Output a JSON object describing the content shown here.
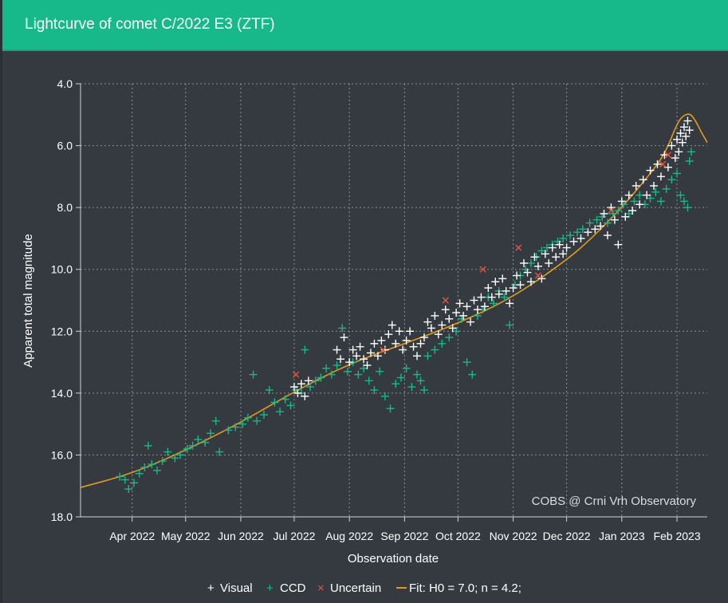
{
  "header": {
    "title": "Lightcurve of comet C/2022 E3 (ZTF)"
  },
  "credit": "COBS @ Crni Vrh Observatory",
  "colors": {
    "header_bg": "#17b98a",
    "background": "#343a40",
    "visual": "#ffffff",
    "ccd": "#17b98a",
    "uncertain": "#e8553c",
    "fit": "#e39b1c",
    "grid": "#8a8f94"
  },
  "chart_data": {
    "type": "scatter",
    "title": "Lightcurve of comet C/2022 E3 (ZTF)",
    "xlabel": "Observation date",
    "ylabel": "Apparent total magnitude",
    "y_inverted": true,
    "ylim": [
      4.0,
      18.0
    ],
    "xlim": [
      "2022-03-03",
      "2023-02-18"
    ],
    "grid": true,
    "legend_position": "bottom",
    "y_ticks": [
      "4.0",
      "6.0",
      "8.0",
      "10.0",
      "12.0",
      "14.0",
      "16.0",
      "18.0"
    ],
    "x_ticks": [
      {
        "date": "2022-04-01",
        "label": "Apr 2022"
      },
      {
        "date": "2022-05-01",
        "label": "May 2022"
      },
      {
        "date": "2022-06-01",
        "label": "Jun 2022"
      },
      {
        "date": "2022-07-01",
        "label": "Jul 2022"
      },
      {
        "date": "2022-08-01",
        "label": "Aug 2022"
      },
      {
        "date": "2022-09-01",
        "label": "Sep 2022"
      },
      {
        "date": "2022-10-01",
        "label": "Oct 2022"
      },
      {
        "date": "2022-11-01",
        "label": "Nov 2022"
      },
      {
        "date": "2022-12-01",
        "label": "Dec 2022"
      },
      {
        "date": "2023-01-01",
        "label": "Jan 2023"
      },
      {
        "date": "2023-02-01",
        "label": "Feb 2023"
      }
    ],
    "legend": [
      {
        "symbol": "+",
        "label": "Visual",
        "color": "#ffffff"
      },
      {
        "symbol": "+",
        "label": "CCD",
        "color": "#17b98a"
      },
      {
        "symbol": "×",
        "label": "Uncertain",
        "color": "#e8553c"
      },
      {
        "symbol": "—",
        "label": "Fit: H0 = 7.0; n = 4.2;",
        "color": "#e39b1c"
      }
    ],
    "series": [
      {
        "name": "Visual",
        "marker": "plus",
        "color": "#ffffff",
        "points": [
          [
            "2022-07-01",
            13.8
          ],
          [
            "2022-07-03",
            14.0
          ],
          [
            "2022-07-05",
            13.7
          ],
          [
            "2022-07-07",
            14.1
          ],
          [
            "2022-07-09",
            13.6
          ],
          [
            "2022-07-25",
            12.6
          ],
          [
            "2022-07-27",
            12.9
          ],
          [
            "2022-07-29",
            12.2
          ],
          [
            "2022-08-01",
            13.0
          ],
          [
            "2022-08-03",
            12.6
          ],
          [
            "2022-08-05",
            12.8
          ],
          [
            "2022-08-07",
            12.5
          ],
          [
            "2022-08-09",
            12.9
          ],
          [
            "2022-08-11",
            13.1
          ],
          [
            "2022-08-13",
            12.7
          ],
          [
            "2022-08-15",
            12.4
          ],
          [
            "2022-08-17",
            12.8
          ],
          [
            "2022-08-19",
            12.3
          ],
          [
            "2022-08-21",
            12.6
          ],
          [
            "2022-08-23",
            12.1
          ],
          [
            "2022-08-25",
            11.8
          ],
          [
            "2022-08-27",
            12.4
          ],
          [
            "2022-08-29",
            12.0
          ],
          [
            "2022-08-31",
            12.6
          ],
          [
            "2022-09-02",
            12.3
          ],
          [
            "2022-09-04",
            12.0
          ],
          [
            "2022-09-06",
            12.5
          ],
          [
            "2022-09-08",
            12.8
          ],
          [
            "2022-09-10",
            12.4
          ],
          [
            "2022-09-12",
            12.2
          ],
          [
            "2022-09-14",
            11.7
          ],
          [
            "2022-09-16",
            11.9
          ],
          [
            "2022-09-18",
            11.5
          ],
          [
            "2022-09-20",
            12.1
          ],
          [
            "2022-09-22",
            11.8
          ],
          [
            "2022-09-24",
            11.3
          ],
          [
            "2022-09-26",
            11.6
          ],
          [
            "2022-09-28",
            11.9
          ],
          [
            "2022-09-30",
            11.4
          ],
          [
            "2022-10-02",
            11.1
          ],
          [
            "2022-10-04",
            11.5
          ],
          [
            "2022-10-06",
            11.2
          ],
          [
            "2022-10-08",
            11.7
          ],
          [
            "2022-10-10",
            11.0
          ],
          [
            "2022-10-12",
            11.3
          ],
          [
            "2022-10-14",
            10.9
          ],
          [
            "2022-10-16",
            11.2
          ],
          [
            "2022-10-18",
            10.6
          ],
          [
            "2022-10-20",
            10.9
          ],
          [
            "2022-10-22",
            10.4
          ],
          [
            "2022-10-24",
            10.8
          ],
          [
            "2022-10-26",
            10.3
          ],
          [
            "2022-10-28",
            10.7
          ],
          [
            "2022-10-30",
            11.1
          ],
          [
            "2022-11-01",
            10.6
          ],
          [
            "2022-11-03",
            10.2
          ],
          [
            "2022-11-05",
            10.5
          ],
          [
            "2022-11-07",
            9.8
          ],
          [
            "2022-11-09",
            10.1
          ],
          [
            "2022-11-11",
            10.4
          ],
          [
            "2022-11-13",
            9.6
          ],
          [
            "2022-11-15",
            9.9
          ],
          [
            "2022-11-17",
            10.3
          ],
          [
            "2022-11-19",
            9.5
          ],
          [
            "2022-11-21",
            9.8
          ],
          [
            "2022-11-23",
            9.3
          ],
          [
            "2022-11-25",
            9.6
          ],
          [
            "2022-11-27",
            9.2
          ],
          [
            "2022-11-29",
            9.5
          ],
          [
            "2022-12-01",
            9.3
          ],
          [
            "2022-12-05",
            9.1
          ],
          [
            "2022-12-09",
            9.0
          ],
          [
            "2022-12-13",
            8.8
          ],
          [
            "2022-12-17",
            8.7
          ],
          [
            "2022-12-20",
            8.6
          ],
          [
            "2022-12-22",
            8.2
          ],
          [
            "2022-12-24",
            8.9
          ],
          [
            "2022-12-26",
            8.0
          ],
          [
            "2022-12-28",
            8.4
          ],
          [
            "2022-12-30",
            9.2
          ],
          [
            "2023-01-01",
            7.8
          ],
          [
            "2023-01-03",
            8.3
          ],
          [
            "2023-01-05",
            7.6
          ],
          [
            "2023-01-07",
            8.1
          ],
          [
            "2023-01-09",
            7.3
          ],
          [
            "2023-01-11",
            7.9
          ],
          [
            "2023-01-13",
            7.1
          ],
          [
            "2023-01-15",
            7.6
          ],
          [
            "2023-01-17",
            6.8
          ],
          [
            "2023-01-19",
            7.3
          ],
          [
            "2023-01-21",
            6.6
          ],
          [
            "2023-01-23",
            7.0
          ],
          [
            "2023-01-25",
            6.3
          ],
          [
            "2023-01-27",
            6.7
          ],
          [
            "2023-01-29",
            6.0
          ],
          [
            "2023-01-31",
            6.4
          ],
          [
            "2023-02-01",
            5.8
          ],
          [
            "2023-02-02",
            6.2
          ],
          [
            "2023-02-03",
            5.6
          ],
          [
            "2023-02-04",
            5.9
          ],
          [
            "2023-02-05",
            5.4
          ],
          [
            "2023-02-06",
            5.7
          ],
          [
            "2023-02-07",
            5.2
          ],
          [
            "2023-02-08",
            5.5
          ]
        ]
      },
      {
        "name": "CCD",
        "marker": "plus",
        "color": "#17b98a",
        "points": [
          [
            "2022-03-25",
            16.7
          ],
          [
            "2022-03-28",
            16.8
          ],
          [
            "2022-03-30",
            17.1
          ],
          [
            "2022-04-02",
            16.9
          ],
          [
            "2022-04-05",
            16.6
          ],
          [
            "2022-04-08",
            16.4
          ],
          [
            "2022-04-10",
            15.7
          ],
          [
            "2022-04-12",
            16.3
          ],
          [
            "2022-04-15",
            16.5
          ],
          [
            "2022-04-18",
            16.2
          ],
          [
            "2022-04-21",
            15.9
          ],
          [
            "2022-04-25",
            16.1
          ],
          [
            "2022-04-28",
            16.0
          ],
          [
            "2022-05-02",
            15.8
          ],
          [
            "2022-05-05",
            15.7
          ],
          [
            "2022-05-08",
            15.5
          ],
          [
            "2022-05-12",
            15.6
          ],
          [
            "2022-05-15",
            15.3
          ],
          [
            "2022-05-18",
            14.9
          ],
          [
            "2022-05-20",
            15.9
          ],
          [
            "2022-05-25",
            15.2
          ],
          [
            "2022-05-29",
            15.1
          ],
          [
            "2022-06-02",
            15.0
          ],
          [
            "2022-06-05",
            14.8
          ],
          [
            "2022-06-08",
            13.4
          ],
          [
            "2022-06-10",
            14.9
          ],
          [
            "2022-06-14",
            14.7
          ],
          [
            "2022-06-17",
            13.9
          ],
          [
            "2022-06-20",
            14.3
          ],
          [
            "2022-06-23",
            14.6
          ],
          [
            "2022-06-26",
            14.2
          ],
          [
            "2022-06-29",
            14.4
          ],
          [
            "2022-07-02",
            13.9
          ],
          [
            "2022-07-05",
            14.0
          ],
          [
            "2022-07-07",
            12.6
          ],
          [
            "2022-07-10",
            13.8
          ],
          [
            "2022-07-13",
            13.6
          ],
          [
            "2022-07-16",
            13.5
          ],
          [
            "2022-07-19",
            13.2
          ],
          [
            "2022-07-22",
            13.4
          ],
          [
            "2022-07-25",
            13.1
          ],
          [
            "2022-07-28",
            11.9
          ],
          [
            "2022-07-31",
            13.3
          ],
          [
            "2022-08-03",
            13.0
          ],
          [
            "2022-08-06",
            13.4
          ],
          [
            "2022-08-09",
            13.2
          ],
          [
            "2022-08-12",
            13.6
          ],
          [
            "2022-08-15",
            13.9
          ],
          [
            "2022-08-18",
            13.3
          ],
          [
            "2022-08-21",
            14.1
          ],
          [
            "2022-08-24",
            14.5
          ],
          [
            "2022-08-27",
            13.7
          ],
          [
            "2022-08-30",
            13.5
          ],
          [
            "2022-09-02",
            13.2
          ],
          [
            "2022-09-05",
            13.8
          ],
          [
            "2022-09-08",
            13.4
          ],
          [
            "2022-09-10",
            13.6
          ],
          [
            "2022-09-12",
            13.9
          ],
          [
            "2022-09-14",
            12.8
          ],
          [
            "2022-09-18",
            12.6
          ],
          [
            "2022-09-22",
            12.4
          ],
          [
            "2022-09-26",
            12.2
          ],
          [
            "2022-09-30",
            12.0
          ],
          [
            "2022-10-03",
            11.6
          ],
          [
            "2022-10-06",
            13.0
          ],
          [
            "2022-10-09",
            13.4
          ],
          [
            "2022-10-12",
            11.5
          ],
          [
            "2022-10-15",
            11.3
          ],
          [
            "2022-10-18",
            10.9
          ],
          [
            "2022-10-21",
            11.1
          ],
          [
            "2022-10-24",
            10.7
          ],
          [
            "2022-10-27",
            10.9
          ],
          [
            "2022-10-30",
            11.8
          ],
          [
            "2022-11-02",
            10.5
          ],
          [
            "2022-11-05",
            10.2
          ],
          [
            "2022-11-08",
            10.0
          ],
          [
            "2022-11-11",
            9.8
          ],
          [
            "2022-11-14",
            9.6
          ],
          [
            "2022-11-17",
            9.4
          ],
          [
            "2022-11-20",
            9.3
          ],
          [
            "2022-11-23",
            9.2
          ],
          [
            "2022-11-26",
            9.1
          ],
          [
            "2022-11-29",
            9.0
          ],
          [
            "2022-12-03",
            8.9
          ],
          [
            "2022-12-07",
            8.8
          ],
          [
            "2022-12-10",
            8.7
          ],
          [
            "2022-12-14",
            8.5
          ],
          [
            "2022-12-18",
            8.4
          ],
          [
            "2022-12-21",
            8.3
          ],
          [
            "2022-12-24",
            8.5
          ],
          [
            "2022-12-27",
            8.2
          ],
          [
            "2022-12-30",
            8.1
          ],
          [
            "2023-01-02",
            7.9
          ],
          [
            "2023-01-05",
            8.2
          ],
          [
            "2023-01-08",
            7.8
          ],
          [
            "2023-01-11",
            7.6
          ],
          [
            "2023-01-14",
            7.9
          ],
          [
            "2023-01-17",
            7.7
          ],
          [
            "2023-01-20",
            7.5
          ],
          [
            "2023-01-23",
            7.8
          ],
          [
            "2023-01-26",
            7.4
          ],
          [
            "2023-01-29",
            7.1
          ],
          [
            "2023-02-01",
            6.9
          ],
          [
            "2023-02-03",
            7.6
          ],
          [
            "2023-02-05",
            7.8
          ],
          [
            "2023-02-07",
            8.0
          ],
          [
            "2023-02-08",
            6.5
          ],
          [
            "2023-02-09",
            6.2
          ]
        ]
      },
      {
        "name": "Uncertain",
        "marker": "cross",
        "color": "#e8553c",
        "points": [
          [
            "2022-07-02",
            13.4
          ],
          [
            "2022-08-20",
            12.6
          ],
          [
            "2022-09-24",
            11.0
          ],
          [
            "2022-10-15",
            10.0
          ],
          [
            "2022-11-04",
            9.3
          ],
          [
            "2022-11-15",
            10.2
          ],
          [
            "2022-12-26",
            8.1
          ],
          [
            "2023-01-24",
            6.6
          ],
          [
            "2023-01-27",
            6.3
          ]
        ]
      }
    ],
    "fit": {
      "name": "Fit: H0 = 7.0; n = 4.2;",
      "H0": 7.0,
      "n": 4.2,
      "points": [
        [
          "2022-03-03",
          17.05
        ],
        [
          "2022-04-01",
          16.6
        ],
        [
          "2022-05-01",
          15.85
        ],
        [
          "2022-06-01",
          14.95
        ],
        [
          "2022-07-01",
          13.95
        ],
        [
          "2022-08-01",
          13.05
        ],
        [
          "2022-09-01",
          12.4
        ],
        [
          "2022-10-01",
          11.75
        ],
        [
          "2022-11-01",
          10.9
        ],
        [
          "2022-12-01",
          9.7
        ],
        [
          "2022-12-15",
          9.0
        ],
        [
          "2023-01-01",
          8.0
        ],
        [
          "2023-01-15",
          7.05
        ],
        [
          "2023-01-25",
          6.3
        ],
        [
          "2023-02-01",
          5.3
        ],
        [
          "2023-02-04",
          5.05
        ],
        [
          "2023-02-08",
          4.95
        ],
        [
          "2023-02-11",
          5.15
        ],
        [
          "2023-02-15",
          5.6
        ],
        [
          "2023-02-18",
          5.9
        ]
      ]
    }
  }
}
